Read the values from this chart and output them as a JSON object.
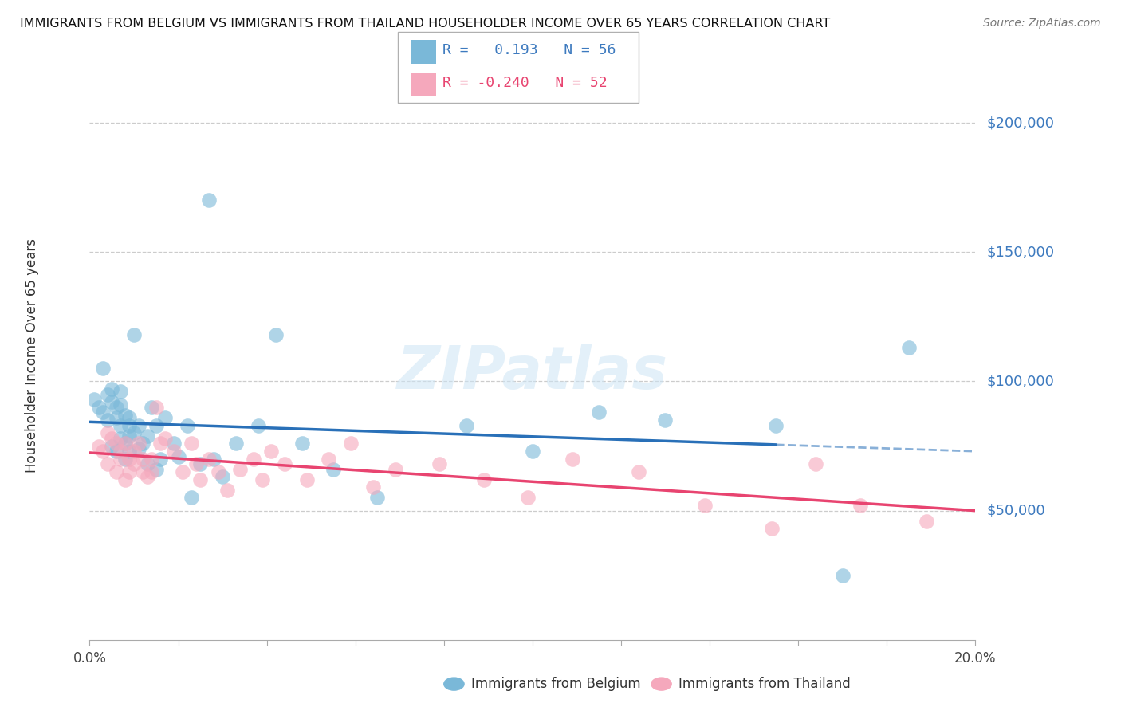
{
  "title": "IMMIGRANTS FROM BELGIUM VS IMMIGRANTS FROM THAILAND HOUSEHOLDER INCOME OVER 65 YEARS CORRELATION CHART",
  "source": "Source: ZipAtlas.com",
  "ylabel": "Householder Income Over 65 years",
  "xlim": [
    0.0,
    0.2
  ],
  "ylim": [
    0,
    220000
  ],
  "ytick_vals": [
    50000,
    100000,
    150000,
    200000
  ],
  "ytick_labels": [
    "$50,000",
    "$100,000",
    "$150,000",
    "$200,000"
  ],
  "belgium_R": 0.193,
  "belgium_N": 56,
  "thailand_R": -0.24,
  "thailand_N": 52,
  "belgium_color": "#7ab8d8",
  "thailand_color": "#f5a8bc",
  "belgium_line_color": "#2970b8",
  "thailand_line_color": "#e84470",
  "grid_color": "#cccccc",
  "bg_color": "#ffffff",
  "belgium_x": [
    0.001,
    0.002,
    0.003,
    0.003,
    0.004,
    0.004,
    0.005,
    0.005,
    0.005,
    0.006,
    0.006,
    0.006,
    0.007,
    0.007,
    0.007,
    0.007,
    0.008,
    0.008,
    0.008,
    0.009,
    0.009,
    0.009,
    0.009,
    0.01,
    0.01,
    0.011,
    0.011,
    0.012,
    0.013,
    0.013,
    0.014,
    0.015,
    0.015,
    0.016,
    0.017,
    0.019,
    0.02,
    0.022,
    0.023,
    0.025,
    0.027,
    0.028,
    0.03,
    0.033,
    0.038,
    0.042,
    0.048,
    0.055,
    0.065,
    0.085,
    0.1,
    0.115,
    0.13,
    0.155,
    0.17,
    0.185
  ],
  "belgium_y": [
    93000,
    90000,
    88000,
    105000,
    95000,
    85000,
    92000,
    97000,
    75000,
    90000,
    86000,
    73000,
    91000,
    83000,
    78000,
    96000,
    87000,
    76000,
    70000,
    83000,
    79000,
    73000,
    86000,
    80000,
    118000,
    74000,
    83000,
    76000,
    79000,
    68000,
    90000,
    66000,
    83000,
    70000,
    86000,
    76000,
    71000,
    83000,
    55000,
    68000,
    170000,
    70000,
    63000,
    76000,
    83000,
    118000,
    76000,
    66000,
    55000,
    83000,
    73000,
    88000,
    85000,
    83000,
    25000,
    113000
  ],
  "thailand_x": [
    0.002,
    0.003,
    0.004,
    0.004,
    0.005,
    0.006,
    0.006,
    0.007,
    0.007,
    0.008,
    0.008,
    0.009,
    0.009,
    0.01,
    0.01,
    0.011,
    0.012,
    0.012,
    0.013,
    0.014,
    0.014,
    0.015,
    0.016,
    0.017,
    0.019,
    0.021,
    0.023,
    0.024,
    0.025,
    0.027,
    0.029,
    0.031,
    0.034,
    0.037,
    0.039,
    0.041,
    0.044,
    0.049,
    0.054,
    0.059,
    0.064,
    0.069,
    0.079,
    0.089,
    0.099,
    0.109,
    0.124,
    0.139,
    0.154,
    0.164,
    0.174,
    0.189
  ],
  "thailand_y": [
    75000,
    73000,
    80000,
    68000,
    78000,
    76000,
    65000,
    73000,
    70000,
    76000,
    62000,
    70000,
    65000,
    73000,
    68000,
    76000,
    70000,
    65000,
    63000,
    70000,
    65000,
    90000,
    76000,
    78000,
    73000,
    65000,
    76000,
    68000,
    62000,
    70000,
    65000,
    58000,
    66000,
    70000,
    62000,
    73000,
    68000,
    62000,
    70000,
    76000,
    59000,
    66000,
    68000,
    62000,
    55000,
    70000,
    65000,
    52000,
    43000,
    68000,
    52000,
    46000
  ]
}
